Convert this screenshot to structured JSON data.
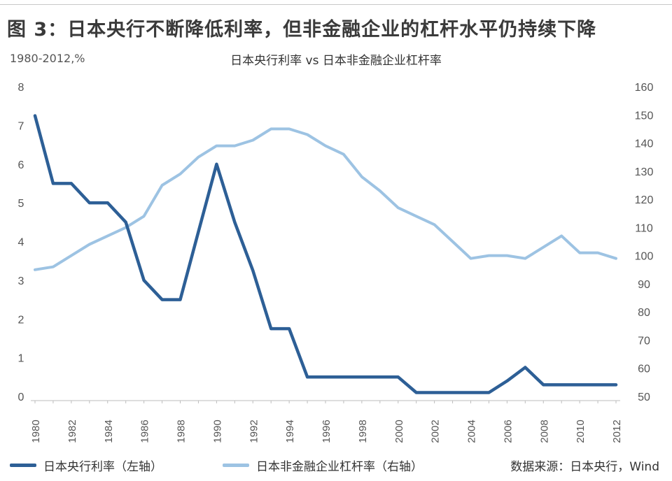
{
  "header": {
    "title": "图 3：日本央行不断降低利率，但非金融企业的杠杆水平仍持续下降",
    "unit_label": "1980-2012,%"
  },
  "footer": {
    "source": "数据来源：日本央行，Wind"
  },
  "colors": {
    "rate_series": "#2d5f96",
    "leverage_series": "#9dc3e3",
    "axis_text": "#555555"
  },
  "chart_data": {
    "type": "line",
    "title": "日本央行利率 vs 日本非金融企业杠杆率",
    "xlabel": "",
    "ylabel": "",
    "x": [
      1980,
      1981,
      1982,
      1983,
      1984,
      1985,
      1986,
      1987,
      1988,
      1989,
      1990,
      1991,
      1992,
      1993,
      1994,
      1995,
      1996,
      1997,
      1998,
      1999,
      2000,
      2001,
      2002,
      2003,
      2004,
      2005,
      2006,
      2007,
      2008,
      2009,
      2010,
      2011,
      2012
    ],
    "x_tick_labels": [
      "1980",
      "1982",
      "1984",
      "1986",
      "1988",
      "1990",
      "1992",
      "1994",
      "1996",
      "1998",
      "2000",
      "2002",
      "2004",
      "2006",
      "2008",
      "2010",
      "2012"
    ],
    "left_axis": {
      "ylim": [
        0,
        8
      ],
      "ticks": [
        "0",
        "1",
        "2",
        "3",
        "4",
        "5",
        "6",
        "7",
        "8"
      ]
    },
    "right_axis": {
      "ylim": [
        50,
        160
      ],
      "ticks": [
        "50",
        "60",
        "70",
        "80",
        "90",
        "100",
        "110",
        "120",
        "130",
        "140",
        "150",
        "160"
      ]
    },
    "legend_position": "bottom-left",
    "grid": false,
    "series": [
      {
        "name": "日本央行利率（左轴）",
        "axis": "left",
        "values": [
          7.25,
          5.5,
          5.5,
          5.0,
          5.0,
          4.5,
          3.0,
          2.5,
          2.5,
          4.25,
          6.0,
          4.5,
          3.25,
          1.75,
          1.75,
          0.5,
          0.5,
          0.5,
          0.5,
          0.5,
          0.5,
          0.1,
          0.1,
          0.1,
          0.1,
          0.1,
          0.4,
          0.75,
          0.3,
          0.3,
          0.3,
          0.3,
          0.3
        ]
      },
      {
        "name": "日本非金融企业杠杆率（右轴）",
        "axis": "right",
        "values": [
          95,
          96,
          100,
          104,
          107,
          110,
          114,
          125,
          129,
          135,
          139,
          139,
          141,
          145,
          145,
          143,
          139,
          136,
          128,
          123,
          117,
          114,
          111,
          105,
          99,
          100,
          100,
          99,
          103,
          107,
          101,
          101,
          99
        ]
      }
    ]
  }
}
